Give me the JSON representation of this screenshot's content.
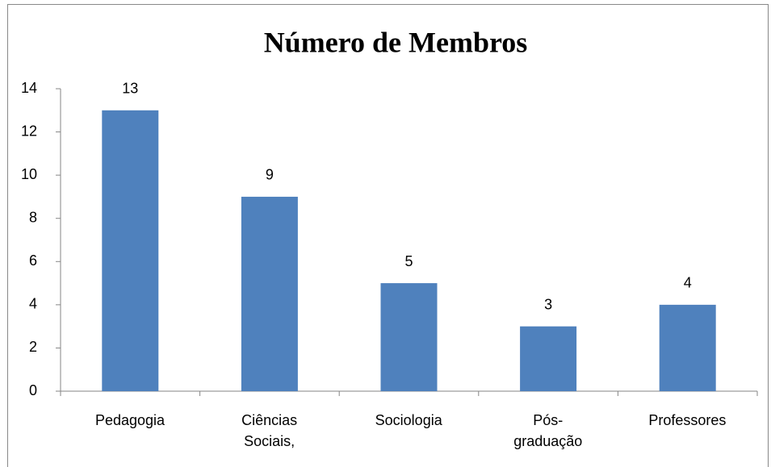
{
  "chart_data": {
    "type": "bar",
    "title": "Número de Membros",
    "categories": [
      "Pedagogia",
      "Ciências Sociais,",
      "Sociologia",
      "Pós-graduação",
      "Professores"
    ],
    "values": [
      13,
      9,
      5,
      3,
      4
    ],
    "color": "#4f81bd",
    "ylim": [
      0,
      14
    ],
    "yticks": [
      0,
      2,
      4,
      6,
      8,
      10,
      12,
      14
    ],
    "grid": false,
    "data_labels": true
  }
}
